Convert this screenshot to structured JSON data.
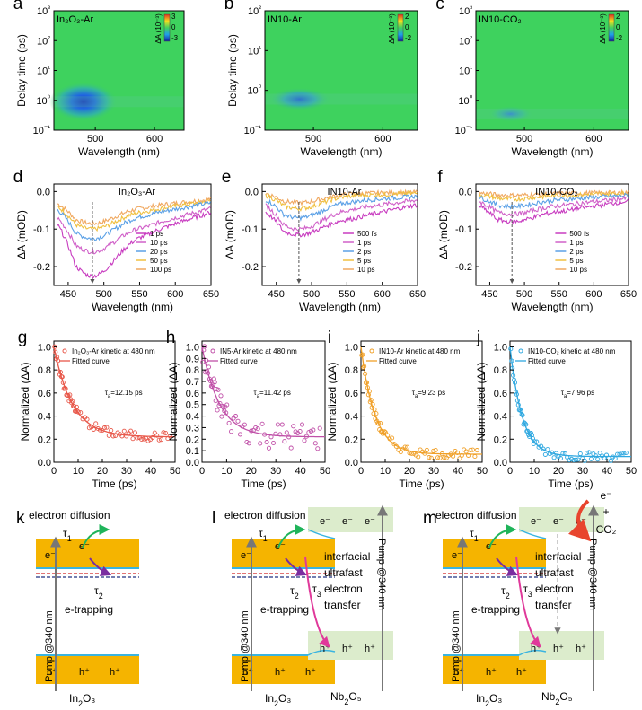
{
  "panels": {
    "a": {
      "letter": "a",
      "label": "In₂O₃-Ar",
      "cbar": {
        "title": "ΔA (10⁻³)",
        "ticks": [
          "3",
          "0",
          "-3"
        ]
      }
    },
    "b": {
      "letter": "b",
      "label": "IN10-Ar",
      "cbar": {
        "title": "ΔA (10⁻³)",
        "ticks": [
          "2",
          "0",
          "-2"
        ]
      }
    },
    "c": {
      "letter": "c",
      "label": "IN10-CO₂",
      "cbar": {
        "title": "ΔA (10⁻³)",
        "ticks": [
          "2",
          "0",
          "-2"
        ]
      }
    },
    "d": {
      "letter": "d",
      "label": "In₂O₃-Ar"
    },
    "e": {
      "letter": "e",
      "label": "IN10-Ar"
    },
    "f": {
      "letter": "f",
      "label": "IN10-CO₂"
    },
    "g": {
      "letter": "g",
      "legend": [
        "In₂O₃-Ar kinetic at 480 nm",
        "Fitted curve"
      ],
      "tau": "τ",
      "tau_sub": "a",
      "tau_value": "=12.15 ps"
    },
    "h": {
      "letter": "h",
      "legend": [
        "IN5-Ar kinetic at 480 nm",
        "Fitted curve"
      ],
      "tau": "τ",
      "tau_sub": "a",
      "tau_value": "=11.42 ps"
    },
    "i": {
      "letter": "i",
      "legend": [
        "IN10-Ar kinetic at 480 nm",
        "Fitted curve"
      ],
      "tau": "τ",
      "tau_sub": "a",
      "tau_value": "=9.23 ps"
    },
    "j": {
      "letter": "j",
      "legend": [
        "IN10-CO₂ kinetic at 480 nm",
        "Fitted curve"
      ],
      "tau": "τ",
      "tau_sub": "a",
      "tau_value": "=7.96 ps"
    }
  },
  "axes": {
    "wavelength": "Wavelength (nm)",
    "delay": "Delay time (ps)",
    "deltaA": "ΔA (mOD)",
    "time": "Time (ps)",
    "norm": "Normalized (ΔA)"
  },
  "schemes": {
    "k": {
      "letter": "k",
      "diffusion": "electron diffusion",
      "trapping": "e-trapping",
      "pump": "Pump @340 nm",
      "material": "In₂O₃",
      "tau1": "τ",
      "tau1_sub": "1",
      "tau2": "τ",
      "tau2_sub": "2",
      "electron": "e⁻",
      "hole": "h⁺"
    },
    "l": {
      "letter": "l",
      "diffusion": "electron diffusion",
      "trapping": "e-trapping",
      "pump": "Pump @340 nm",
      "pump2": "Pump @340 nm",
      "material": "In₂O₃",
      "material2": "Nb₂O₅",
      "tau1": "τ",
      "tau1_sub": "1",
      "tau2": "τ",
      "tau2_sub": "2",
      "tau3": "τ",
      "tau3_sub": "3",
      "transfer": [
        "interfacial",
        "ultrafast",
        "electron",
        "transfer"
      ],
      "electron": "e⁻",
      "hole": "h⁺"
    },
    "m": {
      "letter": "m",
      "diffusion": "electron diffusion",
      "trapping": "e-trapping",
      "pump": "Pump @340 nm",
      "pump2": "Pump @340 nm",
      "material": "In₂O₃",
      "material2": "Nb₂O₅",
      "tau1": "τ",
      "tau1_sub": "1",
      "tau2": "τ",
      "tau2_sub": "2",
      "tau3": "τ",
      "tau3_sub": "3",
      "transfer": [
        "interfacial",
        "ultrafast",
        "electron",
        "transfer"
      ],
      "electron": "e⁻",
      "hole": "h⁺",
      "co2": [
        "e⁻",
        "+",
        "CO₂"
      ]
    }
  },
  "colors": {
    "heat_bg": "#3ed25e",
    "band": "#f5b400",
    "band_edge": "#3ab4e0",
    "nb_band": "#dceccc",
    "diffusion": "#1fb45a",
    "trapping": "#7a2ea0",
    "transfer": "#e0399a",
    "co2": "#e8452e",
    "grey_arrow": "#777777"
  },
  "chart_data": [
    {
      "id": "a",
      "type": "heatmap",
      "x_ticks": [
        500,
        600
      ],
      "xlim": [
        430,
        650
      ],
      "y_scale": "log",
      "ylim": [
        0.1,
        1000
      ],
      "y_ticks": [
        "10⁻¹",
        "10⁰",
        "10¹",
        "10²",
        "10³"
      ],
      "xlabel": "Wavelength (nm)",
      "ylabel": "Delay time (ps)",
      "feature": {
        "center_nm": 480,
        "center_ps": 0.9,
        "min": -3
      }
    },
    {
      "id": "b",
      "type": "heatmap",
      "x_ticks": [
        500,
        600
      ],
      "xlim": [
        430,
        650
      ],
      "y_scale": "log",
      "ylim": [
        0.1,
        100
      ],
      "y_ticks": [
        "10⁻¹",
        "10⁰",
        "10¹",
        "10²"
      ],
      "xlabel": "Wavelength (nm)",
      "ylabel": "Delay time (ps)",
      "feature": {
        "center_nm": 480,
        "center_ps": 0.6,
        "min": -2
      }
    },
    {
      "id": "c",
      "type": "heatmap",
      "x_ticks": [
        500,
        600
      ],
      "xlim": [
        430,
        650
      ],
      "y_scale": "log",
      "ylim": [
        0.1,
        1000
      ],
      "y_ticks": [
        "10⁻¹",
        "10⁰",
        "10¹",
        "10²",
        "10³"
      ],
      "xlabel": "Wavelength (nm)",
      "feature": {
        "center_nm": 480,
        "center_ps": 0.35,
        "min": -2
      }
    },
    {
      "id": "d",
      "type": "line",
      "xlim": [
        430,
        650
      ],
      "ylim": [
        -0.25,
        0.02
      ],
      "x_ticks": [
        450,
        500,
        550,
        600,
        650
      ],
      "y_ticks": [
        0.0,
        -0.1,
        -0.2
      ],
      "xlabel": "Wavelength (nm)",
      "ylabel": "ΔA (mOD)",
      "marker_nm": 484,
      "series": [
        {
          "name": "1 ps",
          "color": "#c83cc0",
          "min": -0.225,
          "edge": -0.11
        },
        {
          "name": "10 ps",
          "color": "#d060c8",
          "min": -0.16,
          "edge": -0.09
        },
        {
          "name": "20 ps",
          "color": "#5aa0e6",
          "min": -0.125,
          "edge": -0.06
        },
        {
          "name": "50 ps",
          "color": "#f0c040",
          "min": -0.1,
          "edge": -0.05
        },
        {
          "name": "100 ps",
          "color": "#f0a860",
          "min": -0.085,
          "edge": -0.04
        }
      ]
    },
    {
      "id": "e",
      "type": "line",
      "xlim": [
        430,
        650
      ],
      "ylim": [
        -0.25,
        0.02
      ],
      "x_ticks": [
        450,
        500,
        550,
        600,
        650
      ],
      "y_ticks": [
        0.0,
        -0.1,
        -0.2
      ],
      "xlabel": "Wavelength (nm)",
      "ylabel": "ΔA (mOD)",
      "marker_nm": 482,
      "series": [
        {
          "name": "500 fs",
          "color": "#c83cc0",
          "min": -0.115,
          "edge": -0.07
        },
        {
          "name": "1 ps",
          "color": "#d060c8",
          "min": -0.1,
          "edge": -0.045
        },
        {
          "name": "2 ps",
          "color": "#5aa0e6",
          "min": -0.07,
          "edge": -0.025
        },
        {
          "name": "5 ps",
          "color": "#f0c040",
          "min": -0.045,
          "edge": -0.01
        },
        {
          "name": "10 ps",
          "color": "#f0a860",
          "min": -0.03,
          "edge": -0.005
        }
      ]
    },
    {
      "id": "f",
      "type": "line",
      "xlim": [
        430,
        650
      ],
      "ylim": [
        -0.25,
        0.02
      ],
      "x_ticks": [
        450,
        500,
        550,
        600,
        650
      ],
      "y_ticks": [
        0.0,
        -0.1,
        -0.2
      ],
      "xlabel": "Wavelength (nm)",
      "ylabel": "ΔA (mOD)",
      "marker_nm": 482,
      "series": [
        {
          "name": "500 fs",
          "color": "#c83cc0",
          "min": -0.08,
          "edge": -0.05
        },
        {
          "name": "1 ps",
          "color": "#d060c8",
          "min": -0.06,
          "edge": -0.035
        },
        {
          "name": "2 ps",
          "color": "#5aa0e6",
          "min": -0.04,
          "edge": -0.02
        },
        {
          "name": "5 ps",
          "color": "#f0c040",
          "min": -0.02,
          "edge": -0.01
        },
        {
          "name": "10 ps",
          "color": "#f0a860",
          "min": -0.01,
          "edge": -0.005
        }
      ]
    },
    {
      "id": "g",
      "type": "scatter",
      "xlim": [
        0,
        50
      ],
      "ylim": [
        0,
        1.05
      ],
      "x_ticks": [
        0,
        10,
        20,
        30,
        40,
        50
      ],
      "y_ticks": [
        0.0,
        0.2,
        0.4,
        0.6,
        0.8,
        1.0
      ],
      "xlabel": "Time (ps)",
      "ylabel": "Normalized (ΔA)",
      "color": "#e8584a",
      "fit": {
        "tau": 12.15,
        "offset": 0.22
      }
    },
    {
      "id": "h",
      "type": "scatter",
      "xlim": [
        0,
        50
      ],
      "ylim": [
        0,
        1.05
      ],
      "x_ticks": [
        0,
        10,
        20,
        30,
        40,
        50
      ],
      "y_ticks": [
        0.0,
        0.1,
        0.2,
        0.3,
        0.4,
        0.5,
        0.6,
        0.7,
        0.8,
        0.9,
        1.0
      ],
      "xlabel": "Time (ps)",
      "ylabel": "Normalized (ΔA)",
      "color": "#c050a8",
      "fit": {
        "tau": 11.42,
        "offset": 0.22
      }
    },
    {
      "id": "i",
      "type": "scatter",
      "xlim": [
        0,
        50
      ],
      "ylim": [
        0,
        1.05
      ],
      "x_ticks": [
        0,
        10,
        20,
        30,
        40,
        50
      ],
      "y_ticks": [
        0.0,
        0.2,
        0.4,
        0.6,
        0.8,
        1.0
      ],
      "xlabel": "Time (ps)",
      "ylabel": "Normalized (ΔA)",
      "color": "#f0a028",
      "fit": {
        "tau": 9.23,
        "offset": 0.07
      }
    },
    {
      "id": "j",
      "type": "scatter",
      "xlim": [
        0,
        50
      ],
      "ylim": [
        0,
        1.05
      ],
      "x_ticks": [
        0,
        10,
        20,
        30,
        40,
        50
      ],
      "y_ticks": [
        0.0,
        0.2,
        0.4,
        0.6,
        0.8,
        1.0
      ],
      "xlabel": "Time (ps)",
      "ylabel": "Normalized (ΔA)",
      "color": "#2fa8e0",
      "fit": {
        "tau": 7.96,
        "offset": 0.05
      }
    }
  ]
}
